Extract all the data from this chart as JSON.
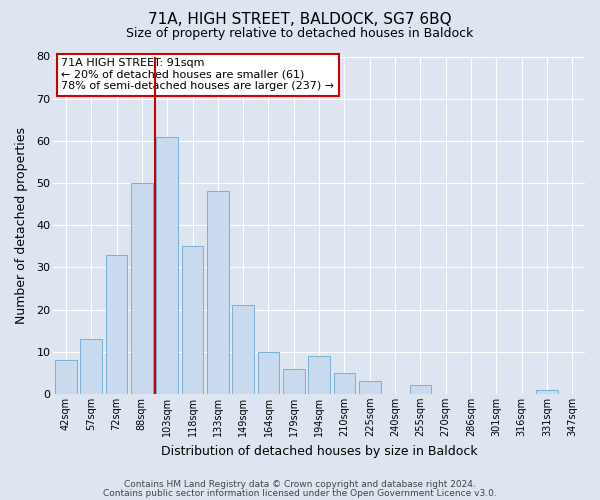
{
  "title": "71A, HIGH STREET, BALDOCK, SG7 6BQ",
  "subtitle": "Size of property relative to detached houses in Baldock",
  "xlabel": "Distribution of detached houses by size in Baldock",
  "ylabel": "Number of detached properties",
  "bar_labels": [
    "42sqm",
    "57sqm",
    "72sqm",
    "88sqm",
    "103sqm",
    "118sqm",
    "133sqm",
    "149sqm",
    "164sqm",
    "179sqm",
    "194sqm",
    "210sqm",
    "225sqm",
    "240sqm",
    "255sqm",
    "270sqm",
    "286sqm",
    "301sqm",
    "316sqm",
    "331sqm",
    "347sqm"
  ],
  "bar_values": [
    8,
    13,
    33,
    50,
    61,
    35,
    48,
    21,
    10,
    6,
    9,
    5,
    3,
    0,
    2,
    0,
    0,
    0,
    0,
    1,
    0
  ],
  "bar_color": "#c9d9ee",
  "bar_edgecolor": "#7aafd4",
  "background_color": "#dde5f0",
  "plot_background": "#dde5f0",
  "grid_color": "#ffffff",
  "ylim": [
    0,
    80
  ],
  "yticks": [
    0,
    10,
    20,
    30,
    40,
    50,
    60,
    70,
    80
  ],
  "vline_x": 3.5,
  "vline_color": "#cc0000",
  "annotation_title": "71A HIGH STREET: 91sqm",
  "annotation_line1": "← 20% of detached houses are smaller (61)",
  "annotation_line2": "78% of semi-detached houses are larger (237) →",
  "annotation_box_edgecolor": "#cc0000",
  "annotation_box_facecolor": "#ffffff",
  "footer_line1": "Contains HM Land Registry data © Crown copyright and database right 2024.",
  "footer_line2": "Contains public sector information licensed under the Open Government Licence v3.0.",
  "title_fontsize": 11,
  "subtitle_fontsize": 9,
  "annotation_fontsize": 8,
  "xlabel_fontsize": 9,
  "ylabel_fontsize": 9,
  "footer_fontsize": 6.5
}
